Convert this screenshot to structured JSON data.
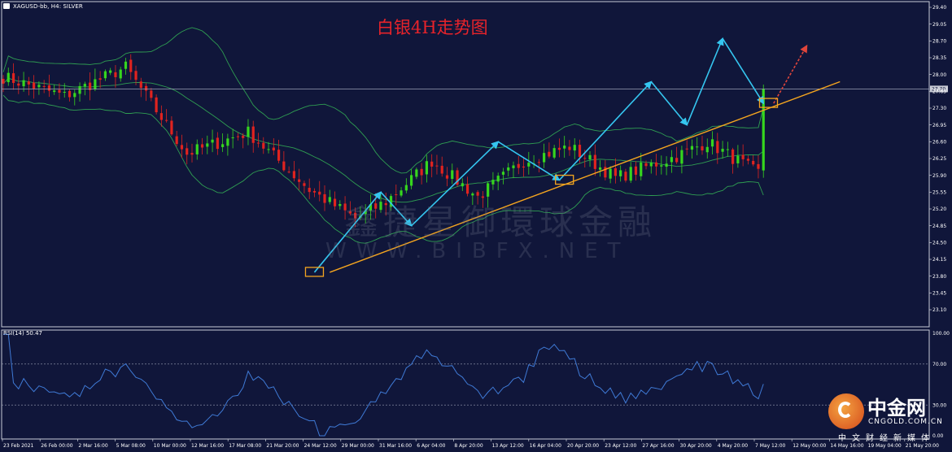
{
  "header": {
    "symbol": "XAGUSD-bb, H4: SILVER",
    "title": "白银4H走势图"
  },
  "watermark": {
    "chinese": "鑫捷星御環球金融",
    "latin": "WWW.BIBFX.NET"
  },
  "brand": {
    "name": "中金网",
    "domain": "CNGOLD.COM.CN",
    "slogan": "中文财经新媒体"
  },
  "rsi": {
    "label": "RSI(14) 50.47",
    "levels": [
      70,
      30
    ],
    "scale_labels": [
      "100.00",
      "70.00",
      "30.00",
      "0.00"
    ]
  },
  "colors": {
    "background": "#10163a",
    "bull_candle": "#36d61e",
    "bear_candle": "#e0231f",
    "bollinger": "#2f9e52",
    "trendline": "#f4a51f",
    "wave_arrows": "#35c6f0",
    "forecast_arrow": "#e0453b",
    "rsi_line": "#3f7ad6",
    "title_red": "#e8232a"
  },
  "chart_data": {
    "type": "candlestick",
    "symbol": "XAGUSD-bb",
    "timeframe": "H4",
    "price_axis_labels": [
      "29.40",
      "29.05",
      "28.70",
      "28.35",
      "28.00",
      "27.65",
      "27.30",
      "26.95",
      "26.60",
      "26.25",
      "25.90",
      "25.55",
      "25.20",
      "24.85",
      "24.50",
      "24.15",
      "23.80",
      "23.45",
      "23.10"
    ],
    "ylim": [
      23.1,
      29.4
    ],
    "current_price": 27.7,
    "current_price_label": "27.70",
    "x_tick_labels": [
      "23 Feb 2021",
      "26 Feb 00:00",
      "2 Mar 16:00",
      "5 Mar 08:00",
      "10 Mar 00:00",
      "12 Mar 16:00",
      "17 Mar 08:00",
      "21 Mar 20:00",
      "24 Mar 12:00",
      "29 Mar 00:00",
      "31 Mar 16:00",
      "6 Apr 04:00",
      "8 Apr 20:00",
      "13 Apr 12:00",
      "16 Apr 04:00",
      "20 Apr 20:00",
      "23 Apr 12:00",
      "27 Apr 16:00",
      "30 Apr 20:00",
      "4 May 20:00",
      "7 May 12:00",
      "12 May 00:00",
      "14 May 16:00",
      "19 May 04:00",
      "21 May 20:00"
    ],
    "price_path": [
      [
        0,
        27.95
      ],
      [
        4,
        27.55
      ],
      [
        8,
        28.15
      ],
      [
        12,
        26.35
      ],
      [
        16,
        26.8
      ],
      [
        20,
        25.6
      ],
      [
        23,
        25.0
      ],
      [
        25,
        25.35
      ],
      [
        28,
        26.2
      ],
      [
        31,
        25.45
      ],
      [
        34,
        26.2
      ],
      [
        37,
        26.5
      ],
      [
        40,
        25.85
      ],
      [
        44,
        26.3
      ],
      [
        46,
        26.6
      ],
      [
        49,
        26.0
      ],
      [
        52,
        25.65
      ],
      [
        55,
        25.0
      ],
      [
        58,
        25.05
      ],
      [
        61,
        24.75
      ],
      [
        64,
        24.4
      ],
      [
        67,
        23.95
      ],
      [
        71,
        24.9
      ],
      [
        74,
        25.6
      ],
      [
        77,
        25.2
      ],
      [
        80,
        24.95
      ],
      [
        83,
        25.55
      ],
      [
        86,
        25.35
      ],
      [
        89,
        26.2
      ],
      [
        92,
        26.6
      ],
      [
        95,
        26.2
      ],
      [
        98,
        26.1
      ],
      [
        101,
        25.75
      ],
      [
        104,
        26.5
      ],
      [
        107,
        26.0
      ],
      [
        110,
        26.5
      ],
      [
        113,
        26.85
      ],
      [
        116,
        27.35
      ],
      [
        119,
        27.85
      ],
      [
        122,
        27.3
      ],
      [
        125,
        27.65
      ],
      [
        128,
        26.85
      ],
      [
        131,
        27.55
      ],
      [
        134,
        27.65
      ],
      [
        137,
        28.6
      ],
      [
        140,
        28.2
      ],
      [
        143,
        27.7
      ],
      [
        146,
        27.45
      ],
      [
        149,
        27.75
      ]
    ],
    "bollinger": {
      "period": 20,
      "deviations": 2
    },
    "trendline": {
      "from": {
        "x_label": "29 Mar 00:00",
        "y": 23.88
      },
      "to_y_at_end": 27.85
    },
    "wave_arrows": [
      {
        "from": 23.88,
        "to": 25.55
      },
      {
        "from": 25.55,
        "to": 24.85
      },
      {
        "from": 24.85,
        "to": 26.6
      },
      {
        "from": 26.6,
        "to": 25.8
      },
      {
        "from": 25.8,
        "to": 27.85
      },
      {
        "from": 27.85,
        "to": 26.95
      },
      {
        "from": 26.95,
        "to": 28.75
      },
      {
        "from": 28.75,
        "to": 27.4
      }
    ],
    "forecast_arrow": {
      "from": 27.4,
      "to": 28.6
    },
    "support_boxes": 3,
    "legend": "none",
    "grid": false
  }
}
